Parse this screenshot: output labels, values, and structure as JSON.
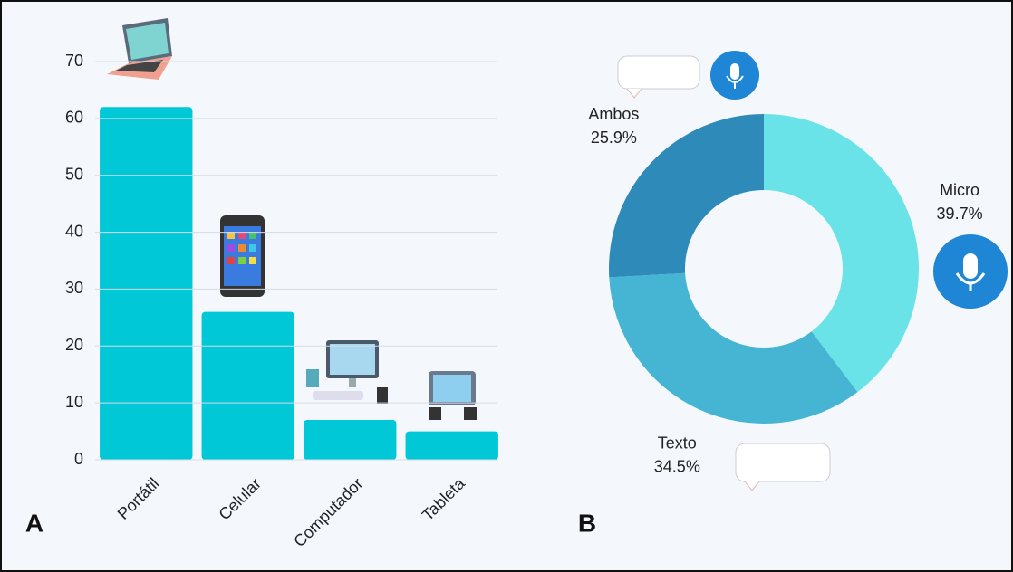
{
  "chart_data": [
    {
      "type": "bar",
      "panel_label": "A",
      "categories": [
        "Portátil",
        "Celular",
        "Computador",
        "Tableta"
      ],
      "values": [
        62,
        26,
        7,
        5
      ],
      "color": "#00c8d7",
      "ylim": [
        0,
        70
      ],
      "yticks": [
        0,
        10,
        20,
        30,
        40,
        50,
        60,
        70
      ],
      "grid": true
    },
    {
      "type": "donut",
      "panel_label": "B",
      "categories": [
        "Micro",
        "Texto",
        "Ambos"
      ],
      "values": [
        39.7,
        34.5,
        25.9
      ],
      "value_labels": [
        "39.7%",
        "34.5%",
        "25.9%"
      ],
      "colors": [
        "#6ae3e8",
        "#45b5d3",
        "#2e8ab8"
      ]
    }
  ]
}
